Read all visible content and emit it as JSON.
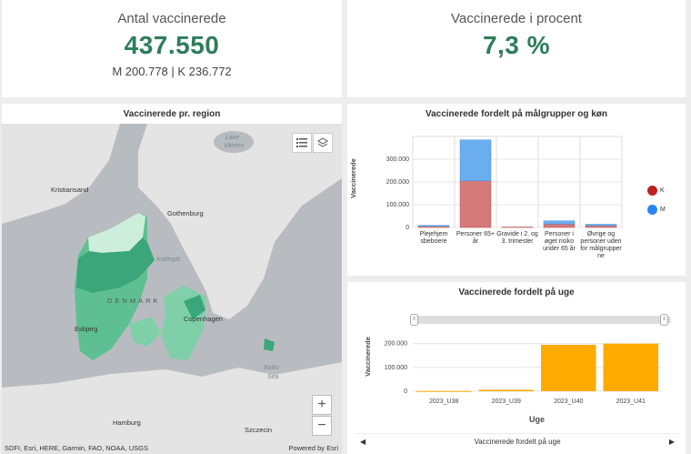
{
  "kpi1": {
    "title": "Antal vaccinerede",
    "value": "437.550",
    "sub": "M 200.778 | K 236.772"
  },
  "kpi2": {
    "title": "Vaccinerede i procent",
    "value": "7,3 %"
  },
  "map": {
    "title": "Vaccinerede pr. region",
    "labels": {
      "kristiansand": "Kristiansand",
      "gothenburg": "Gothenburg",
      "kattegat": "Kattegat",
      "denmark": "DENMARK",
      "copenhagen": "Copenhagen",
      "esbjerg": "Esbjerg",
      "baltic1": "Baltic",
      "baltic2": "Sea",
      "hamburg": "Hamburg",
      "szczecin": "Szczecin",
      "lake1": "Lake",
      "lake2": "Vänern"
    },
    "attribution": "SDFI, Esri, HERE, Garmin, FAO, NOAA, USGS",
    "powered": "Powered by Esri",
    "zoom_in": "+",
    "zoom_out": "−"
  },
  "chart1_title": "Vaccinerede fordelt på målgrupper og køn",
  "chart1_ylabel": "Vaccinerede",
  "chart1_cats": [
    "Plejehjem sbeboere",
    "Personer 65+ år",
    "Gravide i 2. og 3. trimester",
    "Personer i øget risiko under 65 år",
    "Øvrige og personer uden for målgrupper ne"
  ],
  "chart1_legend": {
    "k": "K",
    "m": "M"
  },
  "chart2_title": "Vaccinerede fordelt på uge",
  "chart2_ylabel": "Vaccinerede",
  "chart2_xlabel": "Uge",
  "footer_label": "Vaccinerede fordelt på uge",
  "colors": {
    "green": "#2e7d5b",
    "k": "#d47a7a",
    "m": "#6aaef0",
    "orange": "#ffaa00"
  },
  "chart_data": [
    {
      "type": "bar",
      "stacked": true,
      "title": "Vaccinerede fordelt på målgrupper og køn",
      "ylabel": "Vaccinerede",
      "categories": [
        "Plejehjem sbeboere",
        "Personer 65+ år",
        "Gravide i 2. og 3. trimester",
        "Personer i øget risiko under 65 år",
        "Øvrige og personer uden for målgrupper ne"
      ],
      "series": [
        {
          "name": "K",
          "values": [
            5000,
            205000,
            2000,
            15000,
            8000
          ]
        },
        {
          "name": "M",
          "values": [
            4000,
            180000,
            0,
            14000,
            6000
          ]
        }
      ],
      "ticks": [
        "0",
        "100.000",
        "200.000",
        "300.000"
      ],
      "ylim": [
        0,
        400000
      ]
    },
    {
      "type": "bar",
      "title": "Vaccinerede fordelt på uge",
      "xlabel": "Uge",
      "ylabel": "Vaccinerede",
      "categories": [
        "2023_U38",
        "2023_U39",
        "2023_U40",
        "2023_U41"
      ],
      "values": [
        1000,
        6000,
        195000,
        200000
      ],
      "ticks": [
        "0",
        "100.000",
        "200.000"
      ],
      "ylim": [
        0,
        260000
      ]
    }
  ]
}
